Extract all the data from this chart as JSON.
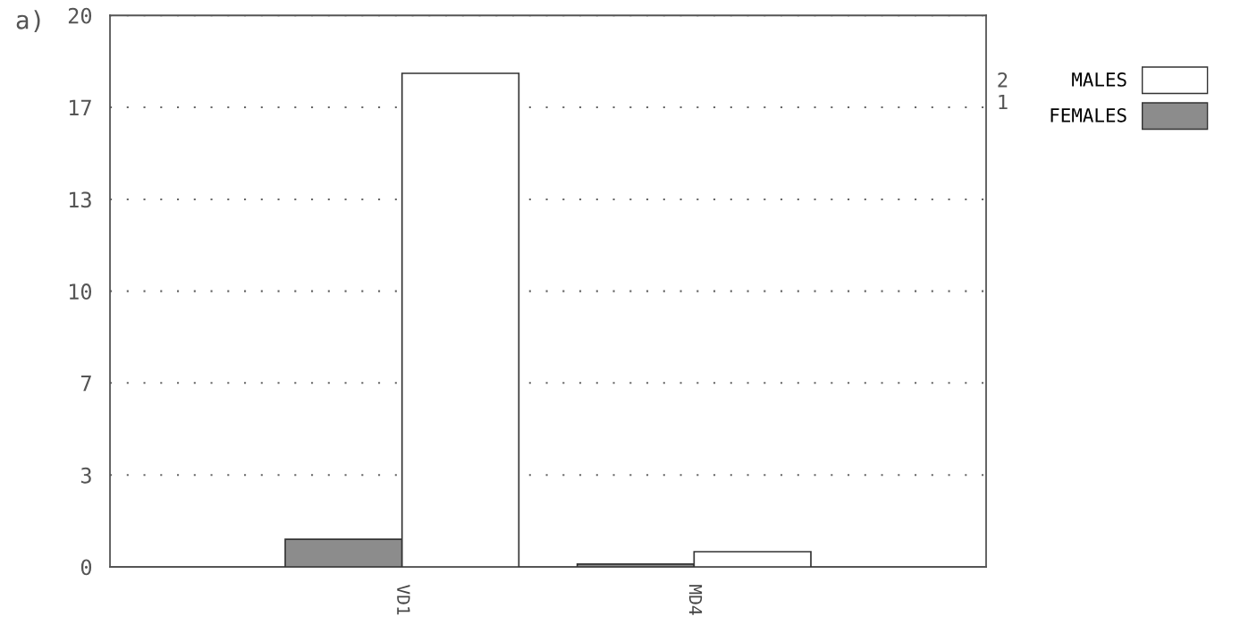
{
  "chart_data": {
    "type": "bar",
    "categories": [
      "VD1",
      "MD4"
    ],
    "series": [
      {
        "name": "FEMALES",
        "color": "#8c8c8c",
        "values": [
          1.0,
          0.1
        ]
      },
      {
        "name": "MALES",
        "color": "#ffffff",
        "values": [
          17.9,
          0.55
        ]
      }
    ],
    "ylim": [
      0,
      20
    ],
    "yticks": [
      0,
      {
        "value": 3.33,
        "label": "3"
      },
      {
        "value": 6.67,
        "label": "7"
      },
      10,
      {
        "value": 13.33,
        "label": "13"
      },
      {
        "value": 16.67,
        "label": "17"
      },
      20
    ],
    "grid": "y",
    "legend": "right",
    "annotations": [
      "a)",
      "2",
      "1"
    ]
  }
}
